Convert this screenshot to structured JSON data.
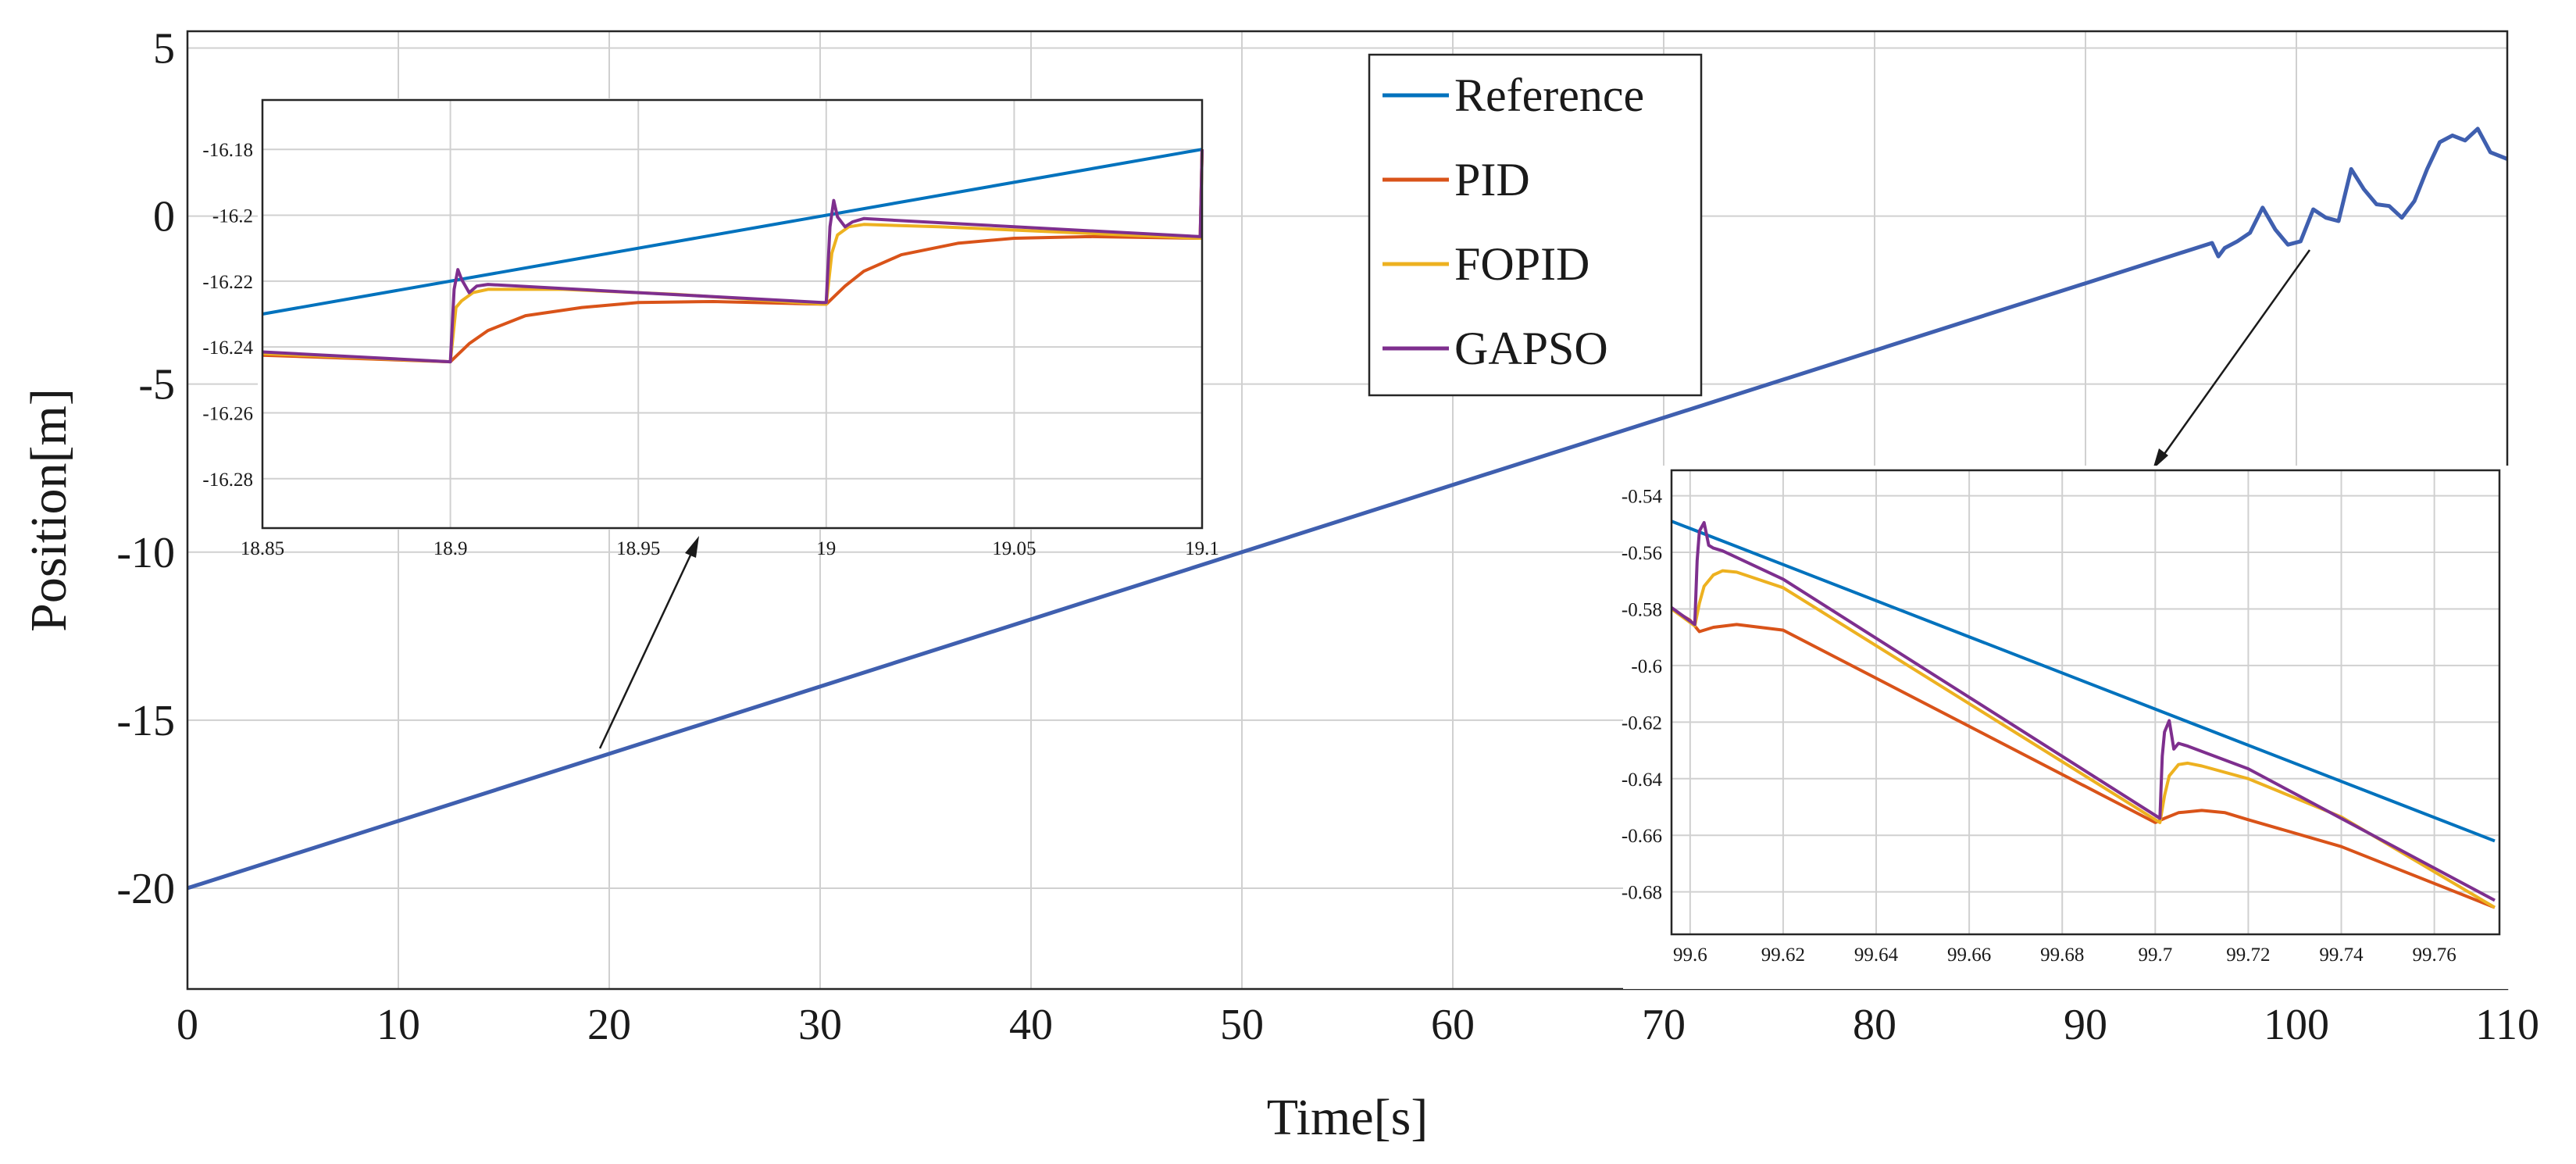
{
  "chart_data": {
    "type": "line",
    "title": "",
    "xlabel": "Time[s]",
    "ylabel": "Position[m]",
    "xlim": [
      0,
      110
    ],
    "ylim": [
      -23,
      5.5
    ],
    "xticks": [
      0,
      10,
      20,
      30,
      40,
      50,
      60,
      70,
      80,
      90,
      100,
      110
    ],
    "yticks": [
      5,
      0,
      -5,
      -10,
      -15,
      -20
    ],
    "grid": true,
    "legend": {
      "position": "top-center",
      "entries": [
        {
          "name": "Reference",
          "color": "#0072BD"
        },
        {
          "name": "PID",
          "color": "#D95319"
        },
        {
          "name": "FOPID",
          "color": "#EDB120"
        },
        {
          "name": "GAPSO",
          "color": "#7E2F8E"
        }
      ]
    },
    "main_series": {
      "name": "Position",
      "color": "#3F5FAF",
      "x": [
        0,
        96,
        96.3,
        96.6,
        97.2,
        97.8,
        98.4,
        99,
        99.6,
        100.2,
        100.8,
        101.4,
        102,
        102.6,
        103.2,
        103.8,
        104.4,
        105,
        105.6,
        106.2,
        106.8,
        107.4,
        108,
        108.6,
        109.2,
        110
      ],
      "y": [
        -20,
        -0.8,
        -1.2,
        -0.95,
        -0.75,
        -0.5,
        0.25,
        -0.4,
        -0.85,
        -0.75,
        0.2,
        -0.05,
        -0.15,
        1.4,
        0.8,
        0.35,
        0.3,
        -0.05,
        0.45,
        1.4,
        2.2,
        2.4,
        2.25,
        2.6,
        1.9,
        1.7
      ]
    },
    "insets": [
      {
        "name": "inset-left",
        "xlim": [
          18.85,
          19.1
        ],
        "ylim": [
          -16.295,
          -16.165
        ],
        "xticks": [
          18.85,
          18.9,
          18.95,
          19,
          19.05,
          19.1
        ],
        "xtick_labels": [
          "18.85",
          "18.9",
          "18.95",
          "19",
          "19.05",
          "19.1"
        ],
        "yticks": [
          -16.18,
          -16.2,
          -16.22,
          -16.24,
          -16.26,
          -16.28
        ],
        "series": [
          {
            "name": "Reference",
            "color": "#0072BD",
            "x": [
              18.85,
              19.1
            ],
            "y": [
              -16.23,
              -16.18
            ]
          },
          {
            "name": "PID",
            "color": "#D95319",
            "x": [
              18.85,
              18.9,
              18.905,
              18.91,
              18.92,
              18.935,
              18.95,
              18.97,
              18.999,
              19.0,
              19.005,
              19.01,
              19.02,
              19.035,
              19.05,
              19.07,
              19.0995,
              19.1
            ],
            "y": [
              -16.2425,
              -16.2445,
              -16.239,
              -16.235,
              -16.2305,
              -16.228,
              -16.2265,
              -16.2262,
              -16.227,
              -16.227,
              -16.2215,
              -16.217,
              -16.212,
              -16.2085,
              -16.207,
              -16.2065,
              -16.207,
              -16.18
            ]
          },
          {
            "name": "FOPID",
            "color": "#EDB120",
            "x": [
              18.85,
              18.9,
              18.9015,
              18.903,
              18.906,
              18.91,
              18.93,
              18.96,
              18.999,
              19.0,
              19.0015,
              19.003,
              19.006,
              19.01,
              19.03,
              19.06,
              19.0995,
              19.1
            ],
            "y": [
              -16.242,
              -16.2445,
              -16.228,
              -16.226,
              -16.2235,
              -16.2225,
              -16.2225,
              -16.224,
              -16.227,
              -16.227,
              -16.2115,
              -16.206,
              -16.2035,
              -16.2028,
              -16.2035,
              -16.205,
              -16.207,
              -16.18
            ]
          },
          {
            "name": "GAPSO",
            "color": "#7E2F8E",
            "x": [
              18.85,
              18.9,
              18.901,
              18.902,
              18.903,
              18.905,
              18.907,
              18.91,
              18.95,
              18.999,
              19.0,
              19.001,
              19.002,
              19.003,
              19.005,
              19.007,
              19.01,
              19.05,
              19.0995,
              19.1
            ],
            "y": [
              -16.2415,
              -16.2445,
              -16.2225,
              -16.2165,
              -16.2195,
              -16.2235,
              -16.2215,
              -16.221,
              -16.2235,
              -16.2265,
              -16.2265,
              -16.2035,
              -16.1955,
              -16.2005,
              -16.2035,
              -16.202,
              -16.201,
              -16.2035,
              -16.2065,
              -16.18
            ]
          }
        ]
      },
      {
        "name": "inset-right",
        "xlim": [
          99.596,
          99.774
        ],
        "ylim": [
          -0.695,
          -0.531
        ],
        "xticks": [
          99.6,
          99.62,
          99.64,
          99.66,
          99.68,
          99.7,
          99.72,
          99.74,
          99.76
        ],
        "xtick_labels": [
          "99.6",
          "99.62",
          "99.64",
          "99.66",
          "99.68",
          "99.7",
          "99.72",
          "99.74",
          "99.76"
        ],
        "yticks": [
          -0.54,
          -0.56,
          -0.58,
          -0.6,
          -0.62,
          -0.64,
          -0.66,
          -0.68
        ],
        "series": [
          {
            "name": "Reference",
            "color": "#0072BD",
            "x": [
              99.596,
              99.773
            ],
            "y": [
              -0.549,
              -0.662
            ]
          },
          {
            "name": "PID",
            "color": "#D95319",
            "x": [
              99.596,
              99.6,
              99.602,
              99.605,
              99.61,
              99.62,
              99.7,
              99.702,
              99.705,
              99.71,
              99.715,
              99.72,
              99.74,
              99.773
            ],
            "y": [
              -0.58,
              -0.584,
              -0.588,
              -0.5865,
              -0.5855,
              -0.5875,
              -0.6555,
              -0.654,
              -0.652,
              -0.6512,
              -0.652,
              -0.6545,
              -0.664,
              -0.6855
            ]
          },
          {
            "name": "FOPID",
            "color": "#EDB120",
            "x": [
              99.596,
              99.601,
              99.602,
              99.603,
              99.605,
              99.607,
              99.61,
              99.62,
              99.701,
              99.702,
              99.703,
              99.705,
              99.707,
              99.71,
              99.72,
              99.74,
              99.773
            ],
            "y": [
              -0.58,
              -0.586,
              -0.578,
              -0.572,
              -0.568,
              -0.5665,
              -0.567,
              -0.5725,
              -0.6555,
              -0.646,
              -0.639,
              -0.635,
              -0.6345,
              -0.6355,
              -0.64,
              -0.6535,
              -0.6855
            ]
          },
          {
            "name": "GAPSO",
            "color": "#7E2F8E",
            "x": [
              99.596,
              99.601,
              99.6015,
              99.602,
              99.603,
              99.6035,
              99.604,
              99.605,
              99.607,
              99.62,
              99.701,
              99.7015,
              99.702,
              99.703,
              99.7035,
              99.704,
              99.705,
              99.707,
              99.72,
              99.773
            ],
            "y": [
              -0.5795,
              -0.5855,
              -0.563,
              -0.5525,
              -0.5495,
              -0.5535,
              -0.5575,
              -0.5585,
              -0.5595,
              -0.5695,
              -0.654,
              -0.632,
              -0.6235,
              -0.6195,
              -0.6245,
              -0.6295,
              -0.6275,
              -0.6285,
              -0.6365,
              -0.683
            ]
          }
        ]
      }
    ]
  }
}
